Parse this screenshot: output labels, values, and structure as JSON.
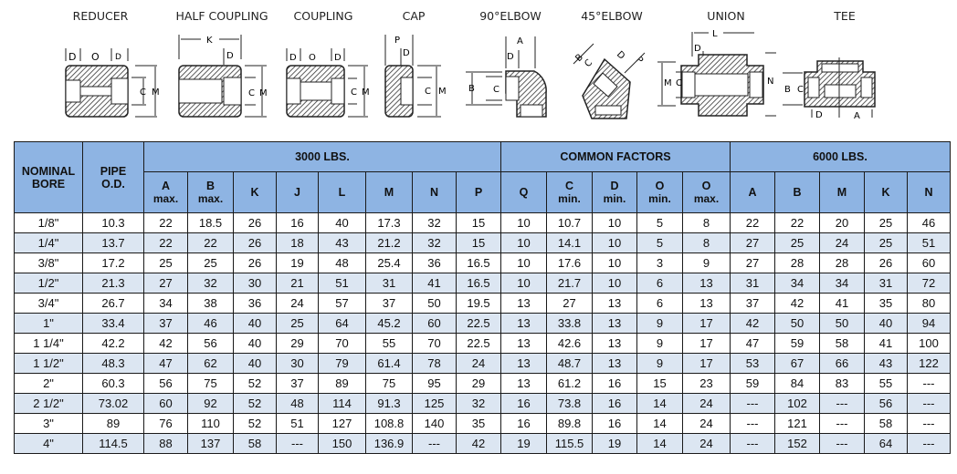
{
  "diagrams": [
    {
      "id": "reducer",
      "title": "REDUCER"
    },
    {
      "id": "half-coupling",
      "title": "HALF  COUPLING"
    },
    {
      "id": "coupling",
      "title": "COUPLING"
    },
    {
      "id": "cap",
      "title": "CAP"
    },
    {
      "id": "elbow-90",
      "title": "90°ELBOW"
    },
    {
      "id": "elbow-45",
      "title": "45°ELBOW"
    },
    {
      "id": "union",
      "title": "UNION"
    },
    {
      "id": "tee",
      "title": "TEE"
    }
  ],
  "table": {
    "group_headers": {
      "nominal_bore": "NOMINAL BORE",
      "pipe_od": "PIPE O.D.",
      "lbs3000": "3000 LBS.",
      "common": "COMMON FACTORS",
      "lbs6000": "6000 LBS."
    },
    "columns": [
      {
        "l1": "A",
        "l2": "max."
      },
      {
        "l1": "B",
        "l2": "max."
      },
      {
        "l1": "K",
        "l2": ""
      },
      {
        "l1": "J",
        "l2": ""
      },
      {
        "l1": "L",
        "l2": ""
      },
      {
        "l1": "M",
        "l2": ""
      },
      {
        "l1": "N",
        "l2": ""
      },
      {
        "l1": "P",
        "l2": ""
      },
      {
        "l1": "Q",
        "l2": ""
      },
      {
        "l1": "C",
        "l2": "min."
      },
      {
        "l1": "D",
        "l2": "min."
      },
      {
        "l1": "O",
        "l2": "min."
      },
      {
        "l1": "O",
        "l2": "max."
      },
      {
        "l1": "A",
        "l2": ""
      },
      {
        "l1": "B",
        "l2": ""
      },
      {
        "l1": "M",
        "l2": ""
      },
      {
        "l1": "K",
        "l2": ""
      },
      {
        "l1": "N",
        "l2": ""
      }
    ],
    "rows": [
      [
        "1/8\"",
        "10.3",
        "22",
        "18.5",
        "26",
        "16",
        "40",
        "17.3",
        "32",
        "15",
        "10",
        "10.7",
        "10",
        "5",
        "8",
        "22",
        "22",
        "20",
        "25",
        "46"
      ],
      [
        "1/4\"",
        "13.7",
        "22",
        "22",
        "26",
        "18",
        "43",
        "21.2",
        "32",
        "15",
        "10",
        "14.1",
        "10",
        "5",
        "8",
        "27",
        "25",
        "24",
        "25",
        "51"
      ],
      [
        "3/8\"",
        "17.2",
        "25",
        "25",
        "26",
        "19",
        "48",
        "25.4",
        "36",
        "16.5",
        "10",
        "17.6",
        "10",
        "3",
        "9",
        "27",
        "28",
        "28",
        "26",
        "60"
      ],
      [
        "1/2\"",
        "21.3",
        "27",
        "32",
        "30",
        "21",
        "51",
        "31",
        "41",
        "16.5",
        "10",
        "21.7",
        "10",
        "6",
        "13",
        "31",
        "34",
        "34",
        "31",
        "72"
      ],
      [
        "3/4\"",
        "26.7",
        "34",
        "38",
        "36",
        "24",
        "57",
        "37",
        "50",
        "19.5",
        "13",
        "27",
        "13",
        "6",
        "13",
        "37",
        "42",
        "41",
        "35",
        "80"
      ],
      [
        "1\"",
        "33.4",
        "37",
        "46",
        "40",
        "25",
        "64",
        "45.2",
        "60",
        "22.5",
        "13",
        "33.8",
        "13",
        "9",
        "17",
        "42",
        "50",
        "50",
        "40",
        "94"
      ],
      [
        "1 1/4\"",
        "42.2",
        "42",
        "56",
        "40",
        "29",
        "70",
        "55",
        "70",
        "22.5",
        "13",
        "42.6",
        "13",
        "9",
        "17",
        "47",
        "59",
        "58",
        "41",
        "100"
      ],
      [
        "1 1/2\"",
        "48.3",
        "47",
        "62",
        "40",
        "30",
        "79",
        "61.4",
        "78",
        "24",
        "13",
        "48.7",
        "13",
        "9",
        "17",
        "53",
        "67",
        "66",
        "43",
        "122"
      ],
      [
        "2\"",
        "60.3",
        "56",
        "75",
        "52",
        "37",
        "89",
        "75",
        "95",
        "29",
        "13",
        "61.2",
        "16",
        "15",
        "23",
        "59",
        "84",
        "83",
        "55",
        "---"
      ],
      [
        "2 1/2\"",
        "73.02",
        "60",
        "92",
        "52",
        "48",
        "114",
        "91.3",
        "125",
        "32",
        "16",
        "73.8",
        "16",
        "14",
        "24",
        "---",
        "102",
        "---",
        "56",
        "---"
      ],
      [
        "3\"",
        "89",
        "76",
        "110",
        "52",
        "51",
        "127",
        "108.8",
        "140",
        "35",
        "16",
        "89.8",
        "16",
        "14",
        "24",
        "---",
        "121",
        "---",
        "58",
        "---"
      ],
      [
        "4\"",
        "114.5",
        "88",
        "137",
        "58",
        "---",
        "150",
        "136.9",
        "---",
        "42",
        "19",
        "115.5",
        "19",
        "14",
        "24",
        "---",
        "152",
        "---",
        "64",
        "---"
      ]
    ]
  },
  "colors": {
    "header_bg": "#8eb4e3",
    "row_alt_bg": "#dce6f2",
    "row_bg": "#ffffff",
    "border": "#1a1a1a"
  }
}
